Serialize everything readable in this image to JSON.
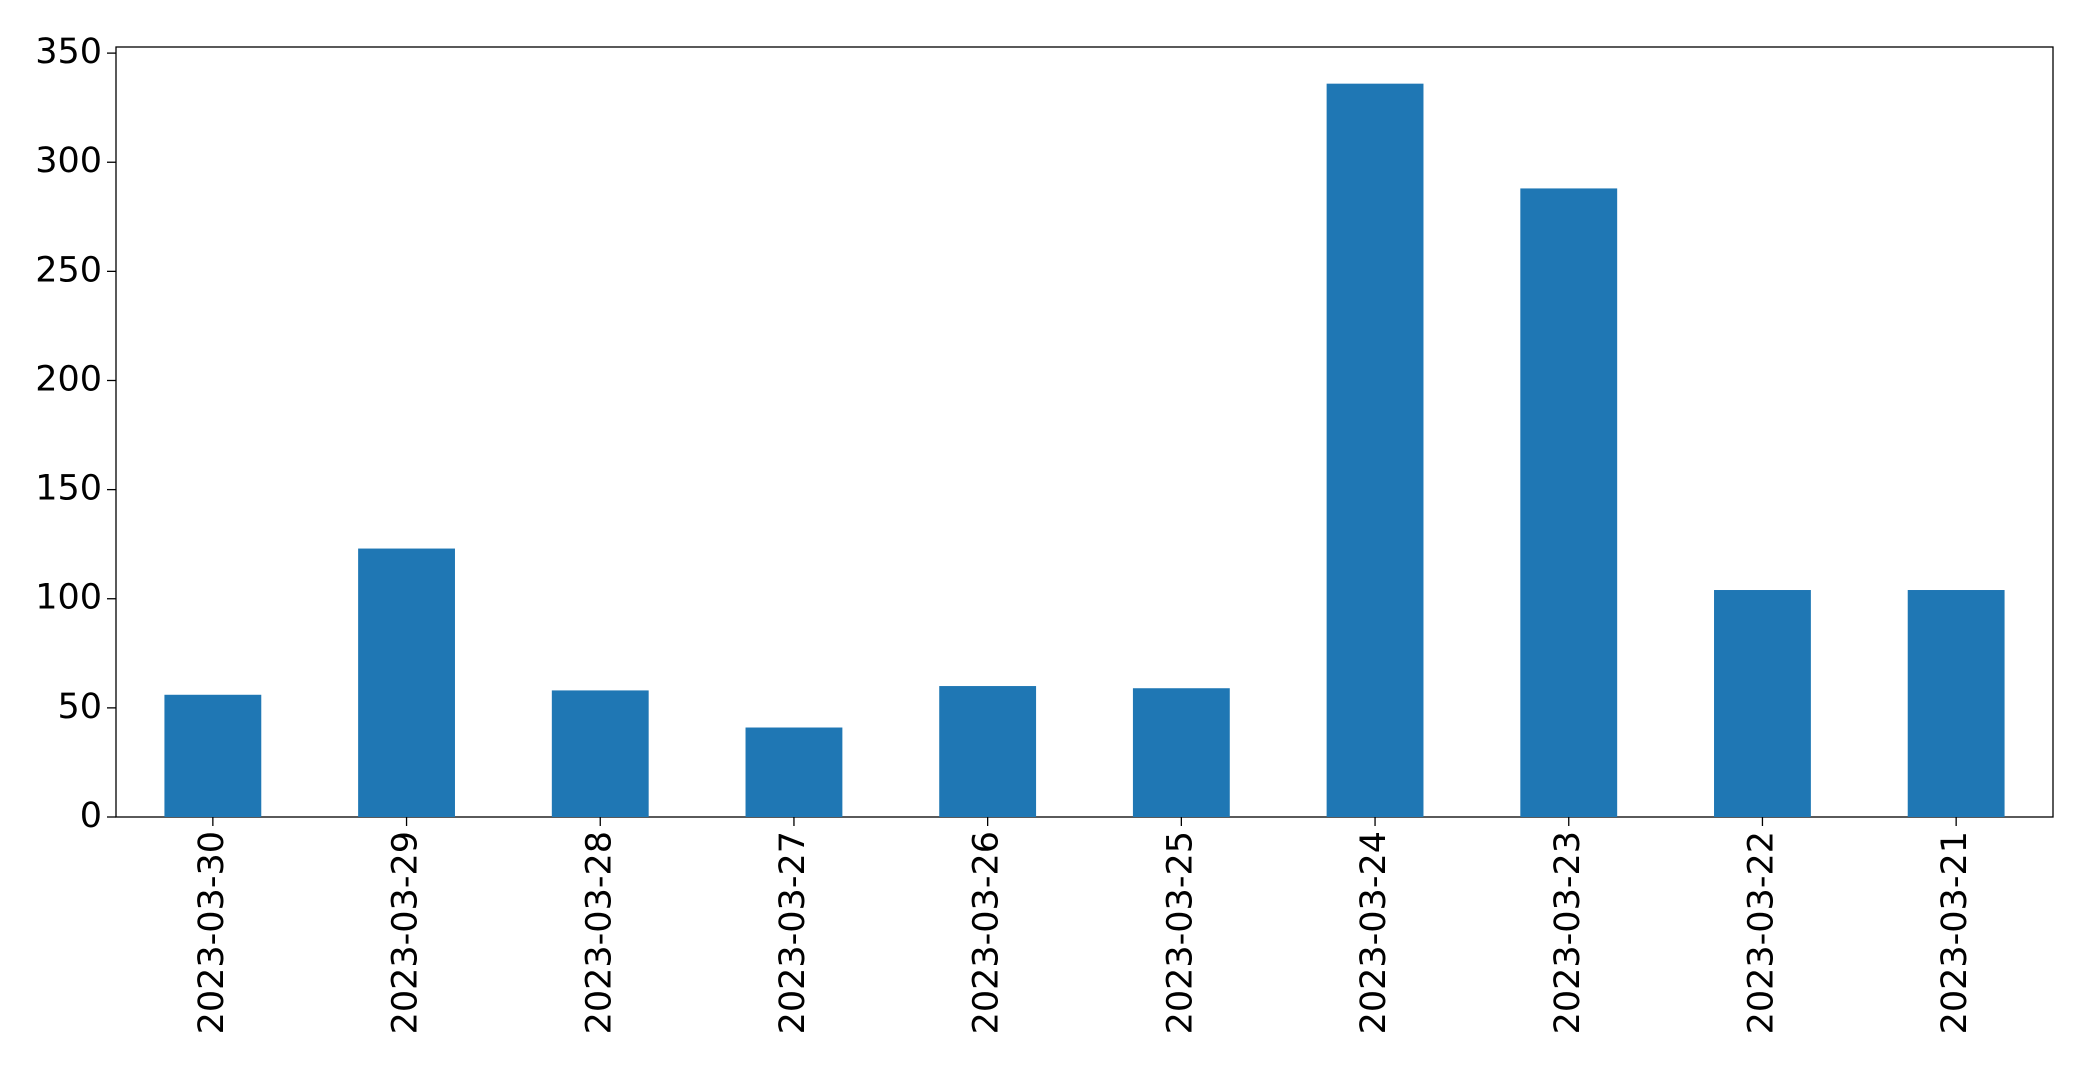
{
  "chart_data": {
    "type": "bar",
    "categories": [
      "2023-03-30",
      "2023-03-29",
      "2023-03-28",
      "2023-03-27",
      "2023-03-26",
      "2023-03-25",
      "2023-03-24",
      "2023-03-23",
      "2023-03-22",
      "2023-03-21"
    ],
    "values": [
      56,
      123,
      58,
      41,
      60,
      59,
      336,
      288,
      104,
      104
    ],
    "color": "#1f77b4",
    "ylim": [
      0,
      352.8
    ],
    "yticks": [
      0,
      50,
      100,
      150,
      200,
      250,
      300,
      350
    ],
    "grid": false
  }
}
